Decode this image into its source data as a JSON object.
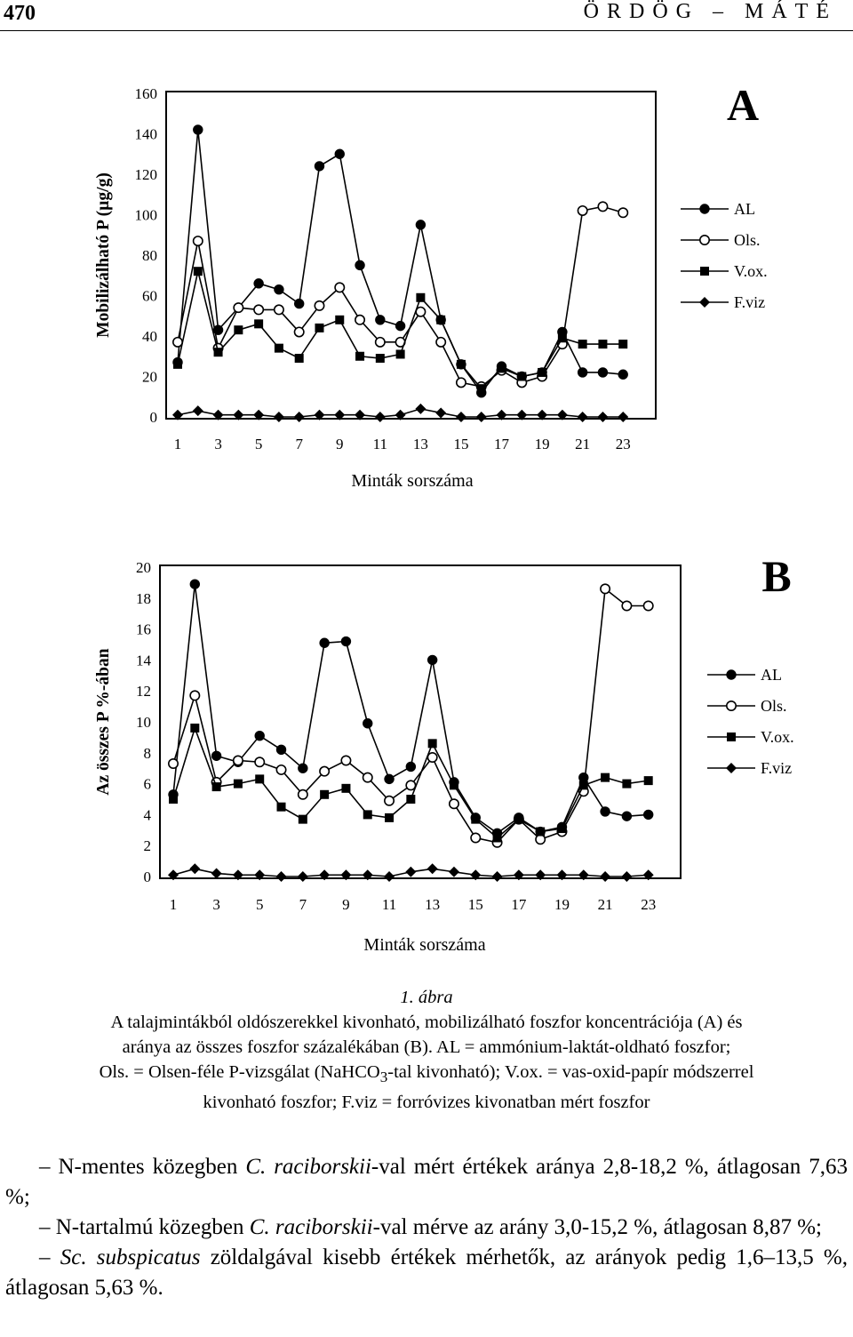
{
  "header": {
    "page_number": "470",
    "running_head": "ÖRDÖG – MÁTÉ"
  },
  "chart_data": [
    {
      "type": "line",
      "panel_label": "A",
      "ylabel": "Mobilizálható P (µg/g)",
      "xlabel": "Minták sorszáma",
      "ylim": [
        0,
        160
      ],
      "yticks": [
        "0",
        "20",
        "40",
        "60",
        "80",
        "100",
        "120",
        "140",
        "160"
      ],
      "xticks": [
        "1",
        "3",
        "5",
        "7",
        "9",
        "11",
        "13",
        "15",
        "17",
        "19",
        "21",
        "23"
      ],
      "grid": false,
      "legend": "right",
      "x": [
        1,
        2,
        3,
        4,
        5,
        6,
        7,
        8,
        9,
        10,
        11,
        12,
        13,
        14,
        15,
        16,
        17,
        18,
        19,
        20,
        21,
        22,
        23,
        24
      ],
      "series": [
        {
          "name": "AL",
          "marker": "filled-circle",
          "values": [
            27,
            142,
            43,
            54,
            66,
            63,
            56,
            124,
            130,
            75,
            48,
            45,
            95,
            48,
            26,
            12,
            25,
            20,
            22,
            42,
            22,
            22,
            21,
            null
          ]
        },
        {
          "name": "Ols.",
          "marker": "open-circle",
          "values": [
            37,
            87,
            34,
            54,
            53,
            53,
            42,
            55,
            64,
            48,
            37,
            37,
            52,
            37,
            17,
            15,
            23,
            17,
            20,
            36,
            102,
            104,
            101,
            null
          ]
        },
        {
          "name": "V.ox.",
          "marker": "filled-square",
          "values": [
            26,
            72,
            32,
            43,
            46,
            34,
            29,
            44,
            48,
            30,
            29,
            31,
            59,
            48,
            26,
            14,
            24,
            20,
            22,
            39,
            36,
            36,
            36,
            null
          ]
        },
        {
          "name": "F.viz",
          "marker": "filled-diamond",
          "values": [
            1,
            3,
            1,
            1,
            1,
            0,
            0,
            1,
            1,
            1,
            0,
            1,
            4,
            2,
            0,
            0,
            1,
            1,
            1,
            1,
            0,
            0,
            0,
            null
          ]
        }
      ]
    },
    {
      "type": "line",
      "panel_label": "B",
      "ylabel": "Az összes P %-ában",
      "xlabel": "Minták sorszáma",
      "ylim": [
        0,
        20
      ],
      "yticks": [
        "0",
        "2",
        "4",
        "6",
        "8",
        "10",
        "12",
        "14",
        "16",
        "18",
        "20"
      ],
      "xticks": [
        "1",
        "3",
        "5",
        "7",
        "9",
        "11",
        "13",
        "15",
        "17",
        "19",
        "21",
        "23"
      ],
      "grid": false,
      "legend": "right",
      "x": [
        1,
        2,
        3,
        4,
        5,
        6,
        7,
        8,
        9,
        10,
        11,
        12,
        13,
        14,
        15,
        16,
        17,
        18,
        19,
        20,
        21,
        22,
        23,
        24
      ],
      "series": [
        {
          "name": "AL",
          "marker": "filled-circle",
          "values": [
            5.3,
            18.9,
            7.8,
            7.4,
            9.1,
            8.2,
            7.0,
            15.1,
            15.2,
            9.9,
            6.3,
            7.1,
            14.0,
            6.1,
            3.8,
            2.8,
            3.8,
            2.9,
            3.2,
            6.4,
            4.2,
            3.9,
            4.0,
            null
          ]
        },
        {
          "name": "Ols.",
          "marker": "open-circle",
          "values": [
            7.3,
            11.7,
            6.1,
            7.5,
            7.4,
            6.9,
            5.3,
            6.8,
            7.5,
            6.4,
            4.9,
            5.9,
            7.7,
            4.7,
            2.5,
            2.2,
            3.7,
            2.4,
            2.9,
            5.5,
            18.6,
            17.5,
            17.5,
            null
          ]
        },
        {
          "name": "V.ox.",
          "marker": "filled-square",
          "values": [
            5.0,
            9.6,
            5.8,
            6.0,
            6.3,
            4.5,
            3.7,
            5.3,
            5.7,
            4.0,
            3.8,
            5.0,
            8.6,
            5.9,
            3.7,
            2.5,
            3.7,
            2.9,
            3.1,
            5.9,
            6.4,
            6.0,
            6.2,
            null
          ]
        },
        {
          "name": "F.viz",
          "marker": "filled-diamond",
          "values": [
            0.1,
            0.5,
            0.2,
            0.1,
            0.1,
            0.0,
            0.0,
            0.1,
            0.1,
            0.1,
            0.0,
            0.3,
            0.5,
            0.3,
            0.1,
            0.0,
            0.1,
            0.1,
            0.1,
            0.1,
            0.0,
            0.0,
            0.1,
            null
          ]
        }
      ]
    }
  ],
  "caption": {
    "figure_number": "1. ábra",
    "lines": [
      "A talajmintákból oldószerekkel kivonható, mobilizálható foszfor koncentrációja (A) és",
      "aránya az összes foszfor százalékában (B). AL = ammónium-laktát-oldható foszfor;"
    ],
    "line3_before_sub": "Ols. = Olsen-féle P-vizsgálat (NaHCO",
    "line3_sub": "3",
    "line3_after_sub": "-tal kivonható); V.ox. = vas-oxid-papír módszerrel",
    "line4": "kivonható foszfor; F.viz = forróvizes kivonatban mért foszfor"
  },
  "body": {
    "items": [
      {
        "lead": "– N-mentes közegben ",
        "italic": "C. raciborskii",
        "rest": "-val mért értékek aránya 2,8-18,2 %, átlagosan 7,63 %;"
      },
      {
        "lead": "– N-tartalmú közegben ",
        "italic": "C. raciborskii",
        "rest": "-val mérve az arány 3,0-15,2 %, átlagosan 8,87 %;"
      },
      {
        "lead": "– ",
        "italic": "Sc. subspicatus",
        "rest": " zöldalgával kisebb értékek mérhetők, az arányok pedig 1,6–13,5 %, átlagosan 5,63 %."
      }
    ]
  }
}
